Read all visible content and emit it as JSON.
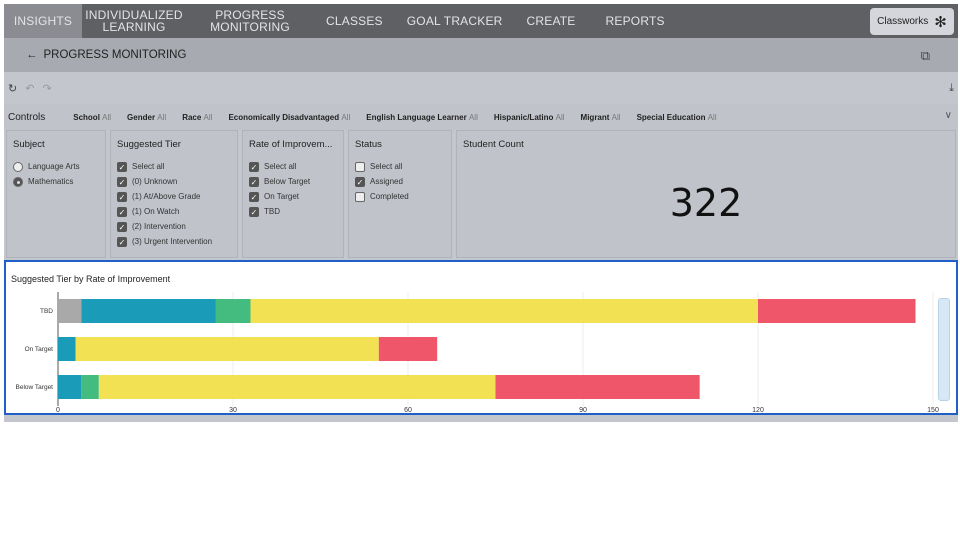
{
  "nav": {
    "tabs": [
      {
        "label": "INSIGHTS"
      },
      {
        "label": "INDIVIDUALIZED LEARNING"
      },
      {
        "label": "PROGRESS MONITORING"
      },
      {
        "label": "CLASSES"
      },
      {
        "label": "GOAL TRACKER"
      },
      {
        "label": "CREATE"
      },
      {
        "label": "REPORTS"
      }
    ],
    "brand": "Classworks"
  },
  "header": {
    "title": "PROGRESS MONITORING"
  },
  "controls": {
    "label": "Controls",
    "filters": [
      {
        "name": "School",
        "value": "All"
      },
      {
        "name": "Gender",
        "value": "All"
      },
      {
        "name": "Race",
        "value": "All"
      },
      {
        "name": "Economically Disadvantaged",
        "value": "All"
      },
      {
        "name": "English Language Learner",
        "value": "All"
      },
      {
        "name": "Hispanic/Latino",
        "value": "All"
      },
      {
        "name": "Migrant",
        "value": "All"
      },
      {
        "name": "Special Education",
        "value": "All"
      }
    ]
  },
  "subject": {
    "title": "Subject",
    "options": [
      {
        "label": "Language Arts",
        "selected": false
      },
      {
        "label": "Mathematics",
        "selected": true
      }
    ]
  },
  "tier": {
    "title": "Suggested Tier",
    "options": [
      {
        "label": "Select all",
        "checked": true
      },
      {
        "label": "(0) Unknown",
        "checked": true
      },
      {
        "label": "(1) At/Above Grade",
        "checked": true
      },
      {
        "label": "(1) On Watch",
        "checked": true
      },
      {
        "label": "(2) Intervention",
        "checked": true
      },
      {
        "label": "(3) Urgent Intervention",
        "checked": true
      }
    ]
  },
  "roi": {
    "title": "Rate of Improvem...",
    "options": [
      {
        "label": "Select all",
        "checked": true
      },
      {
        "label": "Below Target",
        "checked": true
      },
      {
        "label": "On Target",
        "checked": true
      },
      {
        "label": "TBD",
        "checked": true
      }
    ]
  },
  "status": {
    "title": "Status",
    "options": [
      {
        "label": "Select all",
        "checked": false
      },
      {
        "label": "Assigned",
        "checked": true
      },
      {
        "label": "Completed",
        "checked": false
      }
    ]
  },
  "student_count": {
    "title": "Student Count",
    "value": "322"
  },
  "chart_data": {
    "type": "bar",
    "orientation": "horizontal",
    "stacked": true,
    "title": "Suggested Tier by Rate of Improvement",
    "categories": [
      "TBD",
      "On Target",
      "Below Target"
    ],
    "series": [
      {
        "name": "(0) Unknown",
        "color": "#a9a9a9",
        "values": [
          4,
          0,
          0
        ]
      },
      {
        "name": "(1) At/Above Grade",
        "color": "#1a9bb7",
        "values": [
          23,
          3,
          4
        ]
      },
      {
        "name": "(1) On Watch",
        "color": "#44bb7f",
        "values": [
          6,
          0,
          3
        ]
      },
      {
        "name": "(2) Intervention",
        "color": "#f2e253",
        "values": [
          87,
          52,
          68
        ]
      },
      {
        "name": "(3) Urgent Intervention",
        "color": "#f0566a",
        "values": [
          27,
          10,
          35
        ]
      }
    ],
    "xlim": [
      0,
      150
    ],
    "xticks": [
      "0",
      "30",
      "60",
      "90",
      "120",
      "150"
    ],
    "grid": true
  }
}
